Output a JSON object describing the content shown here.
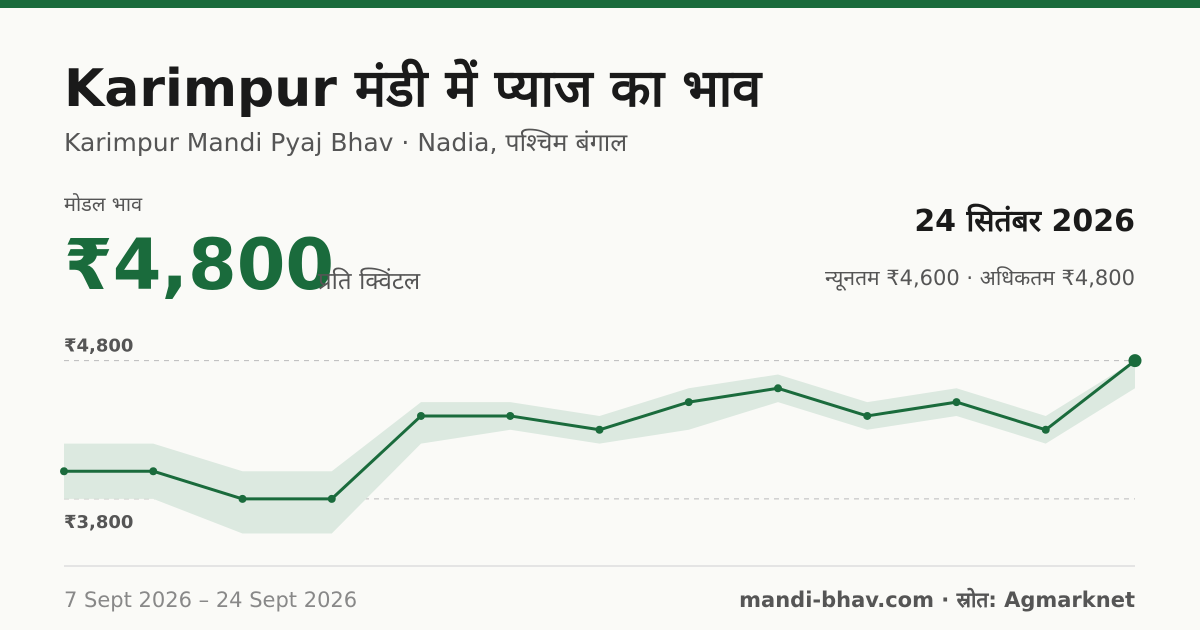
{
  "title": "Karimpur मंडी में प्याज का भाव",
  "subtitle": "Karimpur Mandi Pyaj Bhav · Nadia, पश्चिम बंगाल",
  "headline": {
    "label": "मोडल भाव",
    "price": "₹4,800",
    "unit": "प्रति क्विंटल"
  },
  "date": "24 सितंबर 2026",
  "range": "न्यूनतम ₹4,600 · अधिकतम ₹4,800",
  "footer": {
    "period": "7 Sept 2026 – 24 Sept 2026",
    "source": "mandi-bhav.com · स्रोत: Agmarknet"
  },
  "chart_data": {
    "type": "line",
    "categories": [
      null,
      null,
      null,
      null,
      null,
      null,
      null,
      null,
      null,
      null,
      null,
      null,
      null
    ],
    "series": [
      {
        "color": "#1a6b3c",
        "values": [
          4000,
          4000,
          3800,
          3800,
          4400,
          4400,
          4300,
          4500,
          4600,
          4400,
          4500,
          4300,
          4800
        ]
      }
    ],
    "band": {
      "color": "#dce9e0",
      "min": [
        3800,
        3800,
        3550,
        3550,
        4200,
        4300,
        4200,
        4300,
        4500,
        4300,
        4400,
        4200,
        4600
      ],
      "max": [
        4200,
        4200,
        4000,
        4000,
        4500,
        4500,
        4400,
        4600,
        4700,
        4500,
        4600,
        4400,
        4800
      ]
    },
    "ylim": [
      3300,
      5000
    ],
    "yticks": [
      {
        "value": 3800,
        "label": "₹3,800"
      },
      {
        "value": 4800,
        "label": "₹4,800"
      }
    ],
    "grid": true
  }
}
